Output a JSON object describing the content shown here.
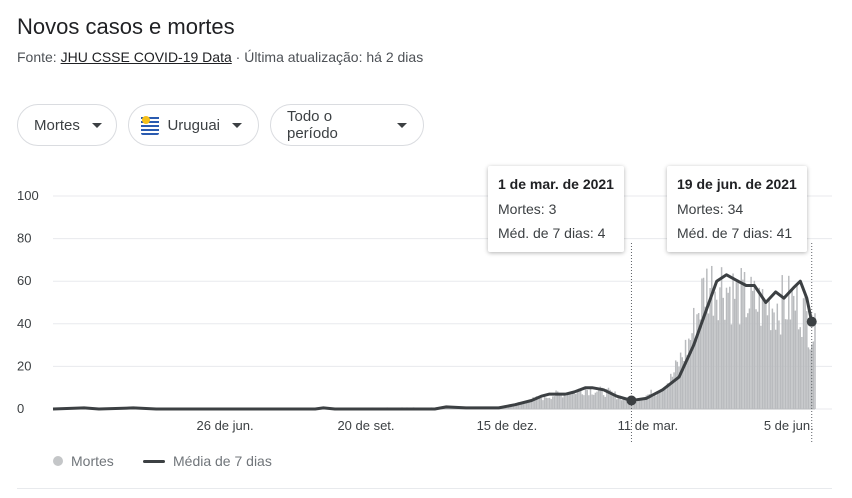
{
  "header": {
    "title": "Novos casos e mortes",
    "source_prefix": "Fonte: ",
    "source_link": "JHU CSSE COVID-19 Data",
    "updated": " · Última atualização: há 2 dias"
  },
  "filters": {
    "metric": "Mortes",
    "country": "Uruguai",
    "period": "Todo o período"
  },
  "colors": {
    "bars": "#b9bbbe",
    "line": "#3c4043",
    "grid": "#e8eaed",
    "axis": "#70757a"
  },
  "legend": {
    "bars": "Mortes",
    "line": "Média de 7 dias"
  },
  "tooltips": [
    {
      "title": "1 de mar. de 2021",
      "row1": "Mortes: 3",
      "row2": "Méd. de 7 dias: 4"
    },
    {
      "title": "19 de jun. de 2021",
      "row1": "Mortes: 34",
      "row2": "Méd. de 7 dias: 41"
    }
  ],
  "chart_data": {
    "type": "bar",
    "x_tick_labels": [
      "26 de jun.",
      "20 de set.",
      "15 de dez.",
      "11 de mar.",
      "5 de jun."
    ],
    "x_tick_dates": [
      "2020-06-26",
      "2020-09-20",
      "2020-12-15",
      "2021-03-11",
      "2021-06-05"
    ],
    "y_ticks": [
      0,
      20,
      40,
      60,
      80,
      100
    ],
    "ylim": [
      0,
      100
    ],
    "grid": true,
    "legend_position": "bottom-left",
    "series": [
      {
        "name": "Média de 7 dias",
        "kind": "line",
        "points": [
          [
            "2020-03-13",
            0
          ],
          [
            "2020-04-01",
            0.5
          ],
          [
            "2020-04-10",
            0
          ],
          [
            "2020-05-01",
            0.5
          ],
          [
            "2020-05-15",
            0
          ],
          [
            "2020-08-20",
            0
          ],
          [
            "2020-08-25",
            0.5
          ],
          [
            "2020-09-01",
            0
          ],
          [
            "2020-11-01",
            0
          ],
          [
            "2020-11-08",
            1
          ],
          [
            "2020-11-20",
            0.5
          ],
          [
            "2020-12-10",
            0.5
          ],
          [
            "2020-12-20",
            2
          ],
          [
            "2020-12-30",
            4
          ],
          [
            "2021-01-05",
            6
          ],
          [
            "2021-01-10",
            7
          ],
          [
            "2021-01-20",
            7
          ],
          [
            "2021-01-25",
            8
          ],
          [
            "2021-02-01",
            10
          ],
          [
            "2021-02-05",
            10
          ],
          [
            "2021-02-12",
            9
          ],
          [
            "2021-02-20",
            6
          ],
          [
            "2021-03-01",
            4
          ],
          [
            "2021-03-10",
            5
          ],
          [
            "2021-03-20",
            9
          ],
          [
            "2021-03-30",
            15
          ],
          [
            "2021-04-08",
            30
          ],
          [
            "2021-04-15",
            45
          ],
          [
            "2021-04-22",
            60
          ],
          [
            "2021-04-28",
            63
          ],
          [
            "2021-05-05",
            60
          ],
          [
            "2021-05-10",
            58
          ],
          [
            "2021-05-15",
            58
          ],
          [
            "2021-05-22",
            50
          ],
          [
            "2021-05-28",
            55
          ],
          [
            "2021-06-02",
            52
          ],
          [
            "2021-06-08",
            57
          ],
          [
            "2021-06-12",
            60
          ],
          [
            "2021-06-16",
            52
          ],
          [
            "2021-06-19",
            41
          ],
          [
            "2021-06-21",
            40
          ]
        ]
      },
      {
        "name": "Mortes",
        "kind": "bar",
        "envelope": [
          [
            "2020-03-13",
            0
          ],
          [
            "2020-12-10",
            1
          ],
          [
            "2020-12-20",
            3
          ],
          [
            "2021-01-01",
            6
          ],
          [
            "2021-01-15",
            9
          ],
          [
            "2021-02-01",
            12
          ],
          [
            "2021-02-15",
            10
          ],
          [
            "2021-03-01",
            5
          ],
          [
            "2021-03-15",
            10
          ],
          [
            "2021-03-25",
            18
          ],
          [
            "2021-04-05",
            40
          ],
          [
            "2021-04-15",
            75
          ],
          [
            "2021-04-25",
            76
          ],
          [
            "2021-05-05",
            68
          ],
          [
            "2021-05-20",
            62
          ],
          [
            "2021-06-05",
            64
          ],
          [
            "2021-06-12",
            63
          ],
          [
            "2021-06-19",
            48
          ],
          [
            "2021-06-21",
            45
          ]
        ]
      }
    ]
  }
}
